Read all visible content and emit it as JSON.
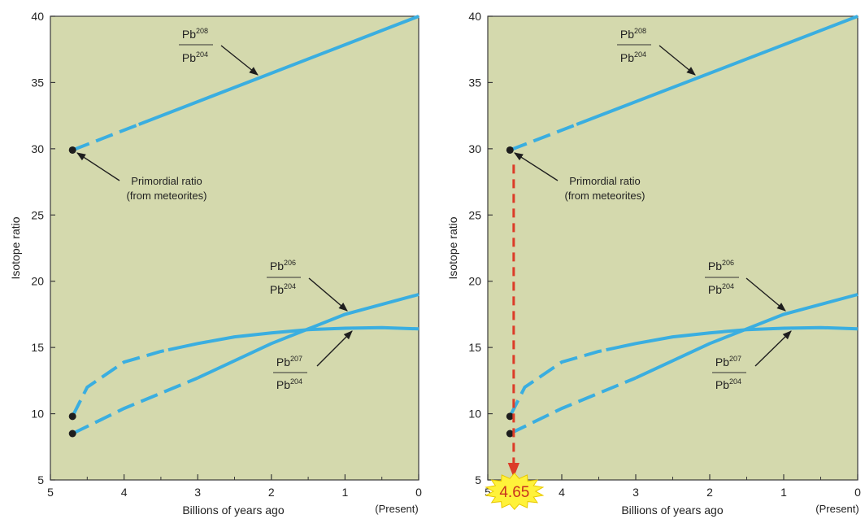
{
  "colors": {
    "plot_bg": "#d4d9ad",
    "curve": "#3aaee0",
    "marker": "#1e1e1e",
    "arrow": "#1e1e1e",
    "drop_line": "#dc3c28",
    "burst_fill": "#fff23a",
    "burst_text": "#c8321e"
  },
  "chart_data": [
    {
      "type": "line",
      "title": "",
      "xlabel": "Billions of years ago",
      "ylabel": "Isotope ratio",
      "xlim": [
        5,
        0
      ],
      "ylim": [
        5,
        40
      ],
      "x_ticks": [
        5,
        4,
        3,
        2,
        1,
        0
      ],
      "y_ticks": [
        5,
        10,
        15,
        20,
        25,
        30,
        35,
        40
      ],
      "present_label": "(Present)",
      "grid": false,
      "series": [
        {
          "label_num": "Pb",
          "num_sup": "208",
          "label_den": "Pb",
          "den_sup": "204",
          "points": [
            [
              4.7,
              29.9
            ],
            [
              0,
              40
            ]
          ],
          "dashed_until": 3.8
        },
        {
          "label_num": "Pb",
          "num_sup": "206",
          "label_den": "Pb",
          "den_sup": "204",
          "points": [
            [
              4.7,
              8.5
            ],
            [
              4.0,
              10.4
            ],
            [
              3.0,
              12.7
            ],
            [
              2.0,
              15.3
            ],
            [
              1.0,
              17.5
            ],
            [
              0,
              19.0
            ]
          ],
          "dashed_until": 3.0
        },
        {
          "label_num": "Pb",
          "num_sup": "207",
          "label_den": "Pb",
          "den_sup": "204",
          "points": [
            [
              4.7,
              9.8
            ],
            [
              4.5,
              12.0
            ],
            [
              4.0,
              13.9
            ],
            [
              3.5,
              14.7
            ],
            [
              3.0,
              15.3
            ],
            [
              2.5,
              15.8
            ],
            [
              2.0,
              16.1
            ],
            [
              1.5,
              16.35
            ],
            [
              1.0,
              16.45
            ],
            [
              0.5,
              16.5
            ],
            [
              0,
              16.4
            ]
          ],
          "dashed_until": 3.4
        }
      ],
      "annotation": {
        "line1": "Primordial ratio",
        "line2": "(from meteorites)"
      }
    },
    {
      "type": "line",
      "title": "",
      "xlabel": "Billions of years ago",
      "ylabel": "Isotope ratio",
      "xlim": [
        5,
        0
      ],
      "ylim": [
        5,
        40
      ],
      "x_ticks": [
        5,
        4,
        3,
        2,
        1,
        0
      ],
      "y_ticks": [
        5,
        10,
        15,
        20,
        25,
        30,
        35,
        40
      ],
      "present_label": "(Present)",
      "grid": false,
      "series": [
        {
          "label_num": "Pb",
          "num_sup": "208",
          "label_den": "Pb",
          "den_sup": "204",
          "points": [
            [
              4.7,
              29.9
            ],
            [
              0,
              40
            ]
          ],
          "dashed_until": 3.8
        },
        {
          "label_num": "Pb",
          "num_sup": "206",
          "label_den": "Pb",
          "den_sup": "204",
          "points": [
            [
              4.7,
              8.5
            ],
            [
              4.0,
              10.4
            ],
            [
              3.0,
              12.7
            ],
            [
              2.0,
              15.3
            ],
            [
              1.0,
              17.5
            ],
            [
              0,
              19.0
            ]
          ],
          "dashed_until": 3.0
        },
        {
          "label_num": "Pb",
          "num_sup": "207",
          "label_den": "Pb",
          "den_sup": "204",
          "points": [
            [
              4.7,
              9.8
            ],
            [
              4.5,
              12.0
            ],
            [
              4.0,
              13.9
            ],
            [
              3.5,
              14.7
            ],
            [
              3.0,
              15.3
            ],
            [
              2.5,
              15.8
            ],
            [
              2.0,
              16.1
            ],
            [
              1.5,
              16.35
            ],
            [
              1.0,
              16.45
            ],
            [
              0.5,
              16.5
            ],
            [
              0,
              16.4
            ]
          ],
          "dashed_until": 3.4
        }
      ],
      "annotation": {
        "line1": "Primordial ratio",
        "line2": "(from meteorites)"
      },
      "age_marker": {
        "x": 4.65,
        "label": "4.65"
      }
    }
  ]
}
